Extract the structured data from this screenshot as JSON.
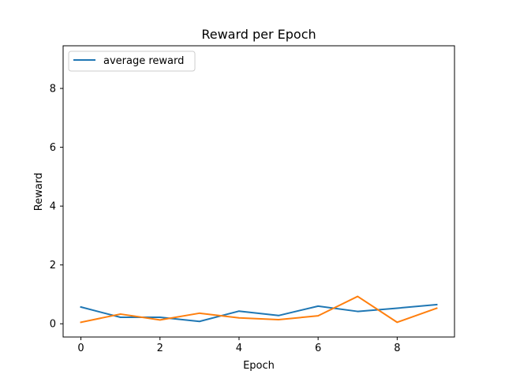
{
  "chart_data": {
    "type": "line",
    "title": "Reward per Epoch",
    "xlabel": "Epoch",
    "ylabel": "Reward",
    "xlim": [
      -0.45,
      9.45
    ],
    "ylim": [
      -0.45,
      9.45
    ],
    "x_ticks": [
      0,
      2,
      4,
      6,
      8
    ],
    "y_ticks": [
      0,
      2,
      4,
      6,
      8
    ],
    "grid": false,
    "legend_position": "top-left",
    "x": [
      0,
      1,
      2,
      3,
      4,
      5,
      6,
      7,
      8,
      9
    ],
    "series": [
      {
        "name": "average reward",
        "color": "#1f77b4",
        "values": [
          0.57,
          0.22,
          0.22,
          0.08,
          0.43,
          0.28,
          0.6,
          0.42,
          0.53,
          0.65
        ]
      },
      {
        "name": "",
        "color": "#ff7f0e",
        "values": [
          0.05,
          0.33,
          0.13,
          0.36,
          0.2,
          0.14,
          0.27,
          0.93,
          0.05,
          0.53
        ]
      }
    ]
  }
}
